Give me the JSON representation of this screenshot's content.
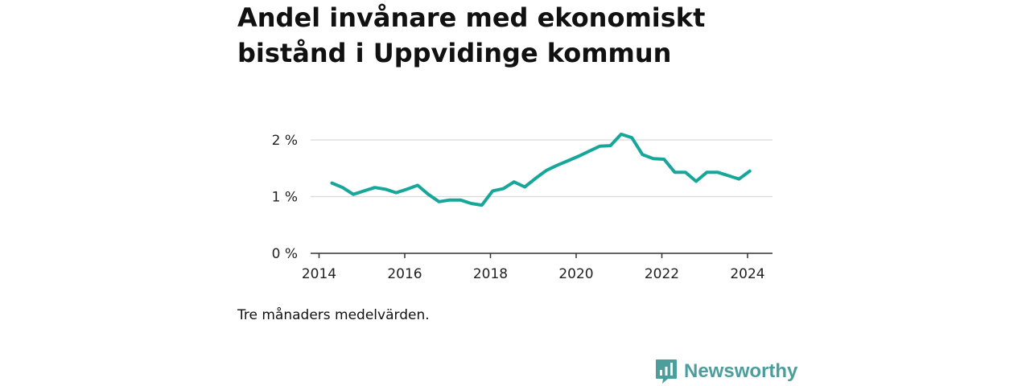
{
  "chart_data": {
    "type": "line",
    "title": "Andel invånare med ekonomiskt\nbistånd i Uppvidinge kommun",
    "note": "Tre månaders medelvärden.",
    "y_unit": "%",
    "ylim": [
      0,
      2.2
    ],
    "xlim": [
      2014,
      2024.6
    ],
    "yticks": [
      {
        "value": 0,
        "label": "0 %"
      },
      {
        "value": 1,
        "label": "1 %"
      },
      {
        "value": 2,
        "label": "2 %"
      }
    ],
    "xticks": [
      {
        "value": 2014,
        "label": "2014"
      },
      {
        "value": 2016,
        "label": "2016"
      },
      {
        "value": 2018,
        "label": "2018"
      },
      {
        "value": 2020,
        "label": "2020"
      },
      {
        "value": 2022,
        "label": "2022"
      },
      {
        "value": 2024,
        "label": "2024"
      }
    ],
    "grid": true,
    "series": [
      {
        "color": "#17a69a",
        "x": [
          2014.3,
          2014.55,
          2014.8,
          2015.05,
          2015.3,
          2015.55,
          2015.8,
          2016.05,
          2016.3,
          2016.55,
          2016.8,
          2017.05,
          2017.3,
          2017.55,
          2017.8,
          2018.05,
          2018.3,
          2018.55,
          2018.8,
          2019.05,
          2019.3,
          2019.55,
          2019.8,
          2020.05,
          2020.3,
          2020.55,
          2020.8,
          2021.05,
          2021.3,
          2021.55,
          2021.8,
          2022.05,
          2022.3,
          2022.55,
          2022.8,
          2023.05,
          2023.3,
          2023.55,
          2023.8,
          2024.05
        ],
        "y": [
          1.24,
          1.16,
          1.04,
          1.1,
          1.16,
          1.13,
          1.07,
          1.13,
          1.2,
          1.04,
          0.91,
          0.94,
          0.94,
          0.88,
          0.85,
          1.1,
          1.14,
          1.26,
          1.17,
          1.32,
          1.46,
          1.55,
          1.63,
          1.71,
          1.8,
          1.89,
          1.9,
          2.1,
          2.04,
          1.74,
          1.67,
          1.66,
          1.43,
          1.43,
          1.27,
          1.43,
          1.43,
          1.37,
          1.31,
          1.45
        ]
      }
    ]
  },
  "branding": {
    "logo_text": "Newsworthy",
    "logo_icon": "bar-chart-speech-bubble-icon",
    "logo_color": "#4b9e9b"
  }
}
